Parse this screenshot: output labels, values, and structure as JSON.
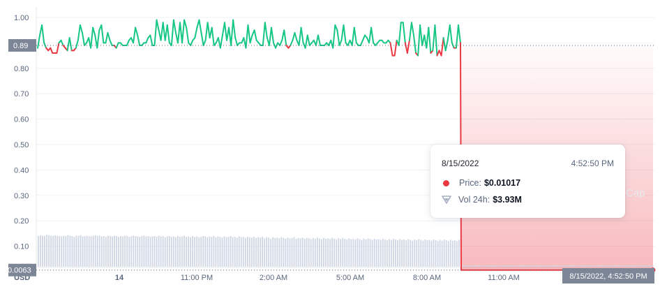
{
  "chart_data": {
    "type": "line",
    "currency_label": "USD",
    "y_ticks": [
      "1.00",
      "0.90",
      "0.80",
      "0.70",
      "0.60",
      "0.50",
      "0.40",
      "0.30",
      "0.20",
      "0.10"
    ],
    "ylim": [
      0,
      1.05
    ],
    "x_ticks": [
      "14",
      "11:00 PM",
      "2:00 AM",
      "5:00 AM",
      "8:00 AM",
      "11:00 AM",
      "2:00 PM"
    ],
    "reference_price": 0.89,
    "reference_label": "0.89",
    "current_price": 0.0063,
    "current_label": "0.0063",
    "crosshair_label": "8/15/2022, 4:52:50 PM",
    "series": [
      {
        "values": [
          0.88,
          0.93,
          0.97,
          0.9,
          0.88,
          0.87,
          0.88,
          0.86,
          0.86,
          0.86,
          0.9,
          0.91,
          0.89,
          0.88,
          0.87,
          0.92,
          0.87,
          0.87,
          0.88,
          0.91,
          0.97,
          0.94,
          0.89,
          0.9,
          0.92,
          0.88,
          0.96,
          0.93,
          0.88,
          0.95,
          0.97,
          0.9,
          0.9,
          0.94,
          0.91,
          0.89,
          0.89,
          0.88,
          0.9,
          0.9,
          0.89,
          0.89,
          0.89,
          0.91,
          0.92,
          0.9,
          0.96,
          0.93,
          0.89,
          0.89,
          0.9,
          0.9,
          0.92,
          0.93,
          0.89,
          0.89,
          0.99,
          0.95,
          0.91,
          0.98,
          0.91,
          0.97,
          0.9,
          0.89,
          0.99,
          0.94,
          0.9,
          0.98,
          0.9,
          0.99,
          0.96,
          0.9,
          0.89,
          0.91,
          0.92,
          0.96,
          0.99,
          0.94,
          0.89,
          0.91,
          0.98,
          0.92,
          0.96,
          0.89,
          0.9,
          0.92,
          0.88,
          0.93,
          0.98,
          0.91,
          0.96,
          0.89,
          0.99,
          0.92,
          0.89,
          0.9,
          0.9,
          0.92,
          0.88,
          0.97,
          0.9,
          0.93,
          0.95,
          0.91,
          0.9,
          0.89,
          0.89,
          0.98,
          0.92,
          0.89,
          0.96,
          0.9,
          0.88,
          0.9,
          0.89,
          0.91,
          0.95,
          0.89,
          0.88,
          0.89,
          0.91,
          0.94,
          0.91,
          0.89,
          0.96,
          0.9,
          0.88,
          0.93,
          0.89,
          0.9,
          0.91,
          0.89,
          0.93,
          0.89,
          0.89,
          0.89,
          0.9,
          0.89,
          0.91,
          0.88,
          0.97,
          0.95,
          0.89,
          0.91,
          0.97,
          0.9,
          0.89,
          0.91,
          0.89,
          0.96,
          0.9,
          0.89,
          0.89,
          0.91,
          0.93,
          0.92,
          0.9,
          0.96,
          0.9,
          0.89,
          0.9,
          0.91,
          0.91,
          0.9,
          0.9,
          0.91,
          0.9,
          0.85,
          0.85,
          0.91,
          0.89,
          0.98,
          0.98,
          0.9,
          0.86,
          0.91,
          0.98,
          0.93,
          0.86,
          0.85,
          0.97,
          0.89,
          0.93,
          0.88,
          0.96,
          0.86,
          0.87,
          0.97,
          0.85,
          0.87,
          0.85,
          0.92,
          0.87,
          0.91,
          0.97,
          0.9,
          0.88,
          0.88,
          0.97,
          0.9
        ],
        "after_drop": 0.0063
      }
    ],
    "volume": {
      "values": [
        0.8,
        0.82,
        0.81,
        0.8,
        0.83,
        0.82,
        0.81,
        0.8,
        0.82,
        0.81,
        0.8,
        0.79,
        0.81,
        0.8,
        0.82,
        0.81,
        0.8,
        0.78,
        0.81,
        0.8,
        0.82,
        0.79,
        0.8,
        0.81,
        0.8,
        0.79,
        0.81,
        0.82,
        0.8,
        0.81,
        0.79,
        0.8,
        0.78,
        0.81,
        0.8,
        0.79,
        0.81,
        0.8,
        0.78,
        0.8,
        0.79,
        0.81,
        0.8,
        0.78,
        0.79,
        0.81,
        0.8,
        0.79,
        0.78,
        0.8,
        0.81,
        0.79,
        0.8,
        0.78,
        0.79,
        0.8,
        0.78,
        0.81,
        0.79,
        0.8,
        0.77,
        0.79,
        0.8,
        0.78,
        0.79,
        0.77,
        0.8,
        0.78,
        0.79,
        0.81,
        0.78,
        0.79,
        0.77,
        0.8,
        0.78,
        0.79,
        0.77,
        0.78,
        0.8,
        0.79,
        0.77,
        0.79,
        0.78,
        0.8,
        0.77,
        0.79,
        0.78,
        0.76,
        0.79,
        0.77,
        0.78,
        0.8,
        0.77,
        0.78,
        0.76,
        0.79,
        0.77,
        0.78,
        0.75,
        0.78,
        0.77,
        0.76,
        0.78,
        0.75,
        0.77,
        0.76,
        0.78,
        0.74,
        0.77,
        0.76,
        0.73,
        0.77,
        0.75,
        0.76,
        0.74,
        0.77,
        0.75,
        0.73,
        0.76,
        0.74,
        0.75,
        0.77,
        0.73,
        0.75,
        0.74,
        0.76,
        0.73,
        0.75,
        0.74,
        0.72,
        0.75,
        0.73,
        0.76,
        0.74,
        0.72,
        0.75,
        0.73,
        0.74,
        0.72,
        0.75,
        0.73,
        0.71,
        0.74,
        0.72,
        0.75,
        0.73,
        0.71,
        0.74,
        0.72,
        0.73,
        0.71,
        0.74,
        0.72,
        0.7,
        0.73,
        0.71,
        0.74,
        0.72,
        0.7,
        0.73,
        0.71,
        0.72,
        0.7,
        0.73,
        0.71,
        0.69,
        0.72,
        0.7,
        0.73,
        0.71,
        0.69,
        0.72,
        0.7,
        0.71,
        0.69,
        0.72,
        0.7,
        0.68,
        0.71,
        0.69,
        0.72,
        0.7,
        0.68,
        0.71,
        0.69,
        0.7,
        0.68,
        0.71,
        0.69,
        0.67,
        0.7,
        0.68,
        0.71,
        0.69,
        0.67,
        0.7,
        0.68,
        0.69,
        0.67,
        0.7
      ],
      "after_drop": 0.04
    },
    "watermark": "Cap"
  },
  "tooltip": {
    "date": "8/15/2022",
    "time": "4:52:50 PM",
    "price_label": "Price:",
    "price_value": "$0.01017",
    "vol_label": "Vol 24h:",
    "vol_value": "$3.93M"
  },
  "colors": {
    "up": "#16c784",
    "down": "#ea3943",
    "badge": "#7d8696",
    "grid": "#eff2f5",
    "volume": "#cfd6e4"
  }
}
